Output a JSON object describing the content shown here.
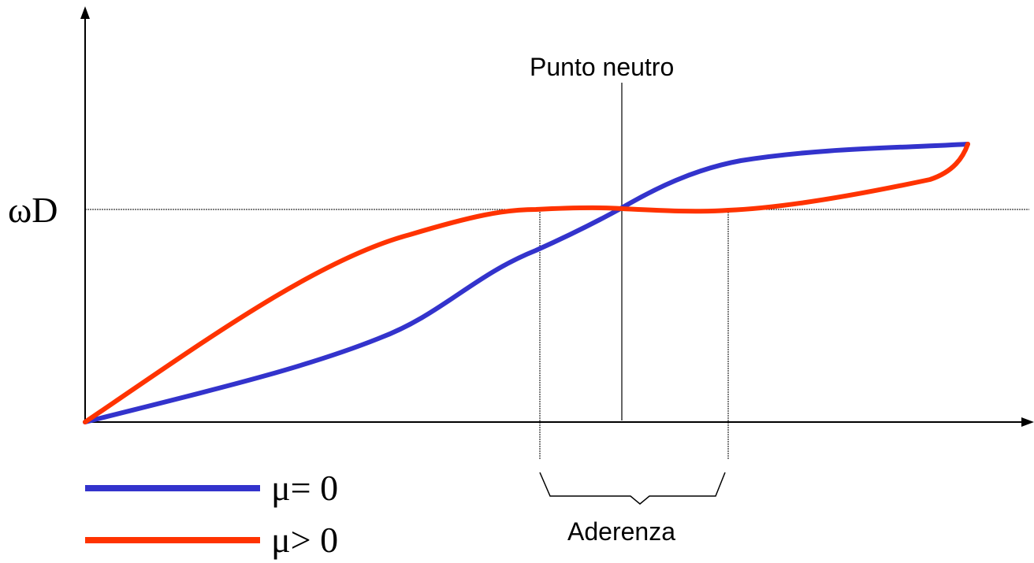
{
  "labels": {
    "y_level": "ωD",
    "neutral_point": "Punto neutro",
    "adhesion": "Aderenza"
  },
  "legend": [
    {
      "label": "μ= 0",
      "color": "#3333cc"
    },
    {
      "label": "μ> 0",
      "color": "#ff3300"
    }
  ],
  "colors": {
    "mu_zero": "#3333cc",
    "mu_positive": "#ff3300",
    "axis": "#000000"
  }
}
